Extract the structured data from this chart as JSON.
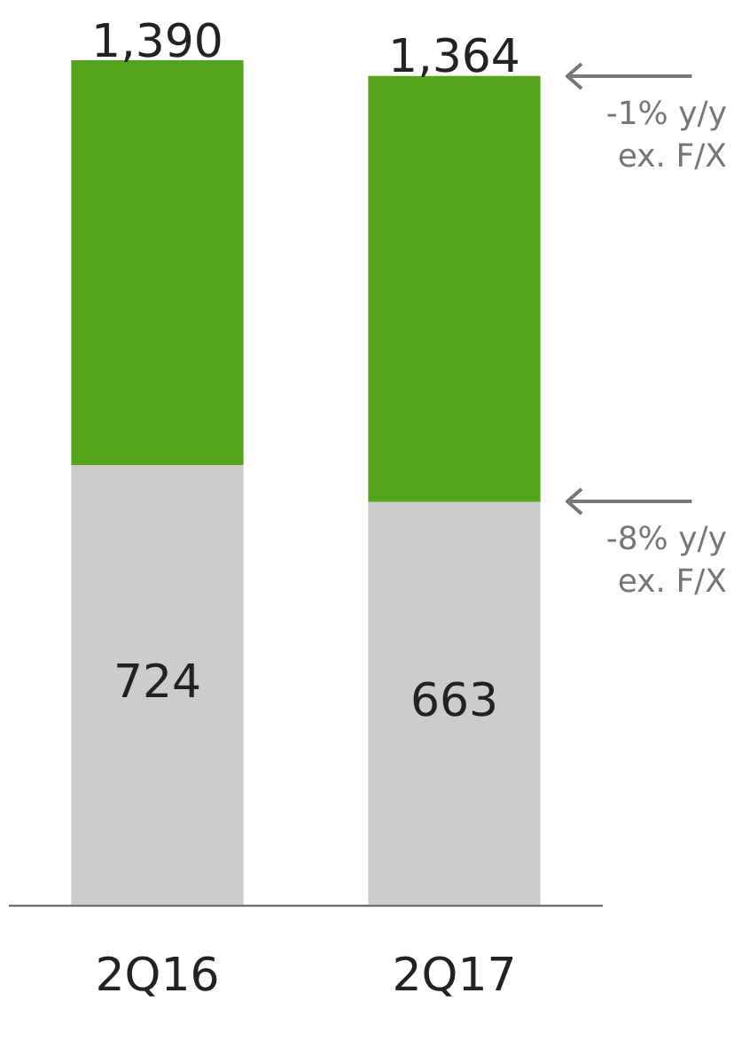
{
  "chart_data": {
    "type": "bar",
    "stacked": true,
    "categories": [
      "2Q16",
      "2Q17"
    ],
    "series": [
      {
        "color": "#cccccc",
        "values": [
          724,
          663
        ],
        "value_labels": [
          "724",
          "663"
        ]
      },
      {
        "color": "#55a51c",
        "values": [
          666,
          701
        ]
      }
    ],
    "totals": [
      "1,390",
      "1,364"
    ],
    "annotations": [
      "-1% y/y ex. F/X",
      "-8% y/y ex. F/X"
    ],
    "grid": false,
    "legend": false
  }
}
